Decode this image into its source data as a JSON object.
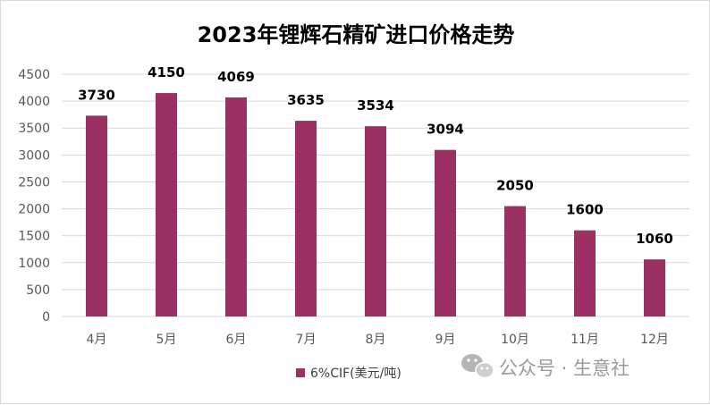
{
  "chart_data": {
    "type": "bar",
    "title": "2023年锂辉石精矿进口价格走势",
    "xlabel": "",
    "ylabel": "",
    "categories": [
      "4月",
      "5月",
      "6月",
      "7月",
      "8月",
      "9月",
      "10月",
      "11月",
      "12月"
    ],
    "series": [
      {
        "name": "6%CIF(美元/吨)",
        "values": [
          3730,
          4150,
          4069,
          3635,
          3534,
          3094,
          2050,
          1600,
          1060
        ],
        "color": "#9B3163"
      }
    ],
    "data_labels": [
      "3730",
      "4150",
      "4069",
      "3635",
      "3534",
      "3094",
      "2050",
      "1600",
      "1060"
    ],
    "ylim": [
      0,
      4500
    ],
    "yticks": [
      "0",
      "500",
      "1000",
      "1500",
      "2000",
      "2500",
      "3000",
      "3500",
      "4000",
      "4500"
    ],
    "grid": true,
    "legend_position": "bottom"
  },
  "watermark": {
    "text": "公众号 · 生意社",
    "icon": "wechat-icon"
  },
  "colors": {
    "bar": "#9B3163",
    "grid": "#d9d9d9",
    "axis_text": "#595959"
  }
}
